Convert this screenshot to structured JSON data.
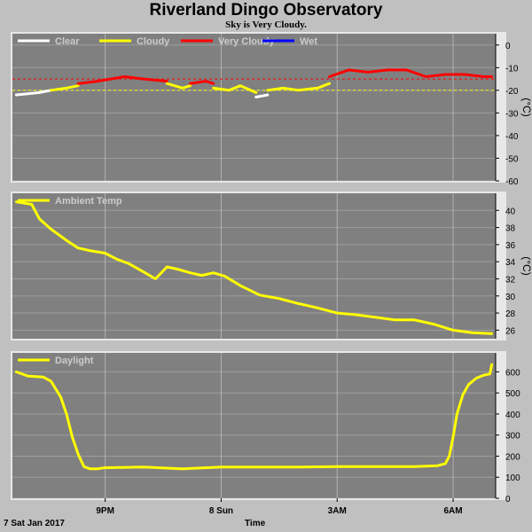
{
  "title": "Riverland Dingo Observatory",
  "subtitle": "Sky is Very Cloudy.",
  "footer": {
    "date": "7 Sat Jan 2017",
    "xlabel": "Time"
  },
  "x_ticks": [
    "9PM",
    "8 Sun",
    "3AM",
    "6AM"
  ],
  "x_tick_hours": [
    21,
    24,
    27,
    30
  ],
  "x_range_hours": [
    18.6,
    31.1
  ],
  "colors": {
    "panel_bg": "#808080",
    "page_bg": "#c0c0c0",
    "grid": "#d8d8d8",
    "yellow": "#ffff00",
    "red": "#ff0000",
    "blue": "#0000ff",
    "white": "#ffffff"
  },
  "chart_data": [
    {
      "type": "line",
      "name": "sky",
      "ylabel": "(°C)",
      "ylim": [
        -60,
        5
      ],
      "yticks": [
        0,
        -10,
        -20,
        -30,
        -40,
        -50,
        -60
      ],
      "threshold_lines": [
        {
          "y": -15,
          "color": "#ff0000"
        },
        {
          "y": -20,
          "color": "#ffff00"
        }
      ],
      "series": [
        {
          "name": "Clear",
          "color": "#ffffff",
          "x": [
            18.7,
            19.0,
            19.3,
            19.6
          ],
          "y": [
            -22,
            -21.5,
            -21,
            -20
          ]
        },
        {
          "name": "Cloudy",
          "color": "#ffff00",
          "x": [
            19.6,
            20.0,
            20.3
          ],
          "y": [
            -20,
            -19,
            -18
          ]
        },
        {
          "name": "Very Cloudy",
          "color": "#ff0000",
          "x": [
            20.3,
            20.8,
            21.5,
            22.0,
            22.6
          ],
          "y": [
            -17,
            -16,
            -14,
            -15,
            -16
          ]
        },
        {
          "name": "Cloudy",
          "color": "#ffff00",
          "x": [
            22.6,
            23.0,
            23.2
          ],
          "y": [
            -17,
            -19,
            -18
          ]
        },
        {
          "name": "Very Cloudy",
          "color": "#ff0000",
          "x": [
            23.2,
            23.6,
            23.8
          ],
          "y": [
            -17,
            -16,
            -17
          ]
        },
        {
          "name": "Cloudy",
          "color": "#ffff00",
          "x": [
            23.8,
            24.2,
            24.5,
            24.9
          ],
          "y": [
            -19,
            -20,
            -18,
            -21
          ]
        },
        {
          "name": "Clear",
          "color": "#ffffff",
          "x": [
            24.9,
            25.2
          ],
          "y": [
            -23,
            -22
          ]
        },
        {
          "name": "Cloudy",
          "color": "#ffff00",
          "x": [
            25.2,
            25.6,
            26.0,
            26.5,
            26.8
          ],
          "y": [
            -20,
            -19,
            -20,
            -19,
            -17
          ]
        },
        {
          "name": "Very Cloudy",
          "color": "#ff0000",
          "x": [
            26.8,
            27.3,
            27.8,
            28.3,
            28.8,
            29.3,
            29.8,
            30.3,
            30.8,
            31.0
          ],
          "y": [
            -14,
            -11,
            -12,
            -11,
            -11,
            -14,
            -13,
            -13,
            -14,
            -14
          ]
        }
      ],
      "legend": [
        "Clear",
        "Cloudy",
        "Very Cloudy",
        "Wet"
      ],
      "legend_colors": [
        "#ffffff",
        "#ffff00",
        "#ff0000",
        "#0000ff"
      ]
    },
    {
      "type": "line",
      "name": "ambient",
      "ylabel": "(°C)",
      "ylim": [
        25,
        42
      ],
      "yticks": [
        40,
        38,
        36,
        34,
        32,
        30,
        28,
        26
      ],
      "legend": [
        "Ambient Temp"
      ],
      "legend_colors": [
        "#ffff00"
      ],
      "series": [
        {
          "name": "Ambient Temp",
          "color": "#ffff00",
          "x": [
            18.7,
            19.1,
            19.3,
            19.6,
            20.0,
            20.3,
            20.6,
            21.0,
            21.3,
            21.6,
            22.0,
            22.3,
            22.6,
            22.9,
            23.2,
            23.5,
            23.8,
            24.1,
            24.5,
            25.0,
            25.5,
            26.0,
            26.5,
            27.0,
            27.5,
            28.0,
            28.5,
            29.0,
            29.5,
            30.0,
            30.5,
            31.0
          ],
          "y": [
            41.0,
            40.7,
            39.0,
            37.8,
            36.5,
            35.6,
            35.3,
            35.0,
            34.3,
            33.8,
            32.8,
            32.0,
            33.4,
            33.1,
            32.7,
            32.4,
            32.7,
            32.3,
            31.2,
            30.1,
            29.7,
            29.1,
            28.6,
            28.0,
            27.8,
            27.5,
            27.2,
            27.2,
            26.7,
            26.0,
            25.7,
            25.6
          ]
        }
      ]
    },
    {
      "type": "line",
      "name": "daylight",
      "ylabel": "",
      "ylim": [
        0,
        690
      ],
      "yticks": [
        600,
        500,
        400,
        300,
        200,
        100,
        0
      ],
      "legend": [
        "Daylight"
      ],
      "legend_colors": [
        "#ffff00"
      ],
      "series": [
        {
          "name": "Daylight",
          "color": "#ffff00",
          "x": [
            18.7,
            19.0,
            19.4,
            19.6,
            19.85,
            20.0,
            20.15,
            20.3,
            20.45,
            20.6,
            20.8,
            21.0,
            22.0,
            23.0,
            24.0,
            25.0,
            26.0,
            27.0,
            28.0,
            29.0,
            29.6,
            29.8,
            29.9,
            30.0,
            30.1,
            30.25,
            30.4,
            30.6,
            30.8,
            30.95,
            31.0
          ],
          "y": [
            600,
            580,
            575,
            555,
            480,
            400,
            290,
            210,
            150,
            140,
            140,
            145,
            148,
            140,
            148,
            148,
            148,
            150,
            150,
            150,
            155,
            165,
            200,
            290,
            400,
            490,
            540,
            570,
            585,
            590,
            635
          ]
        }
      ]
    }
  ]
}
